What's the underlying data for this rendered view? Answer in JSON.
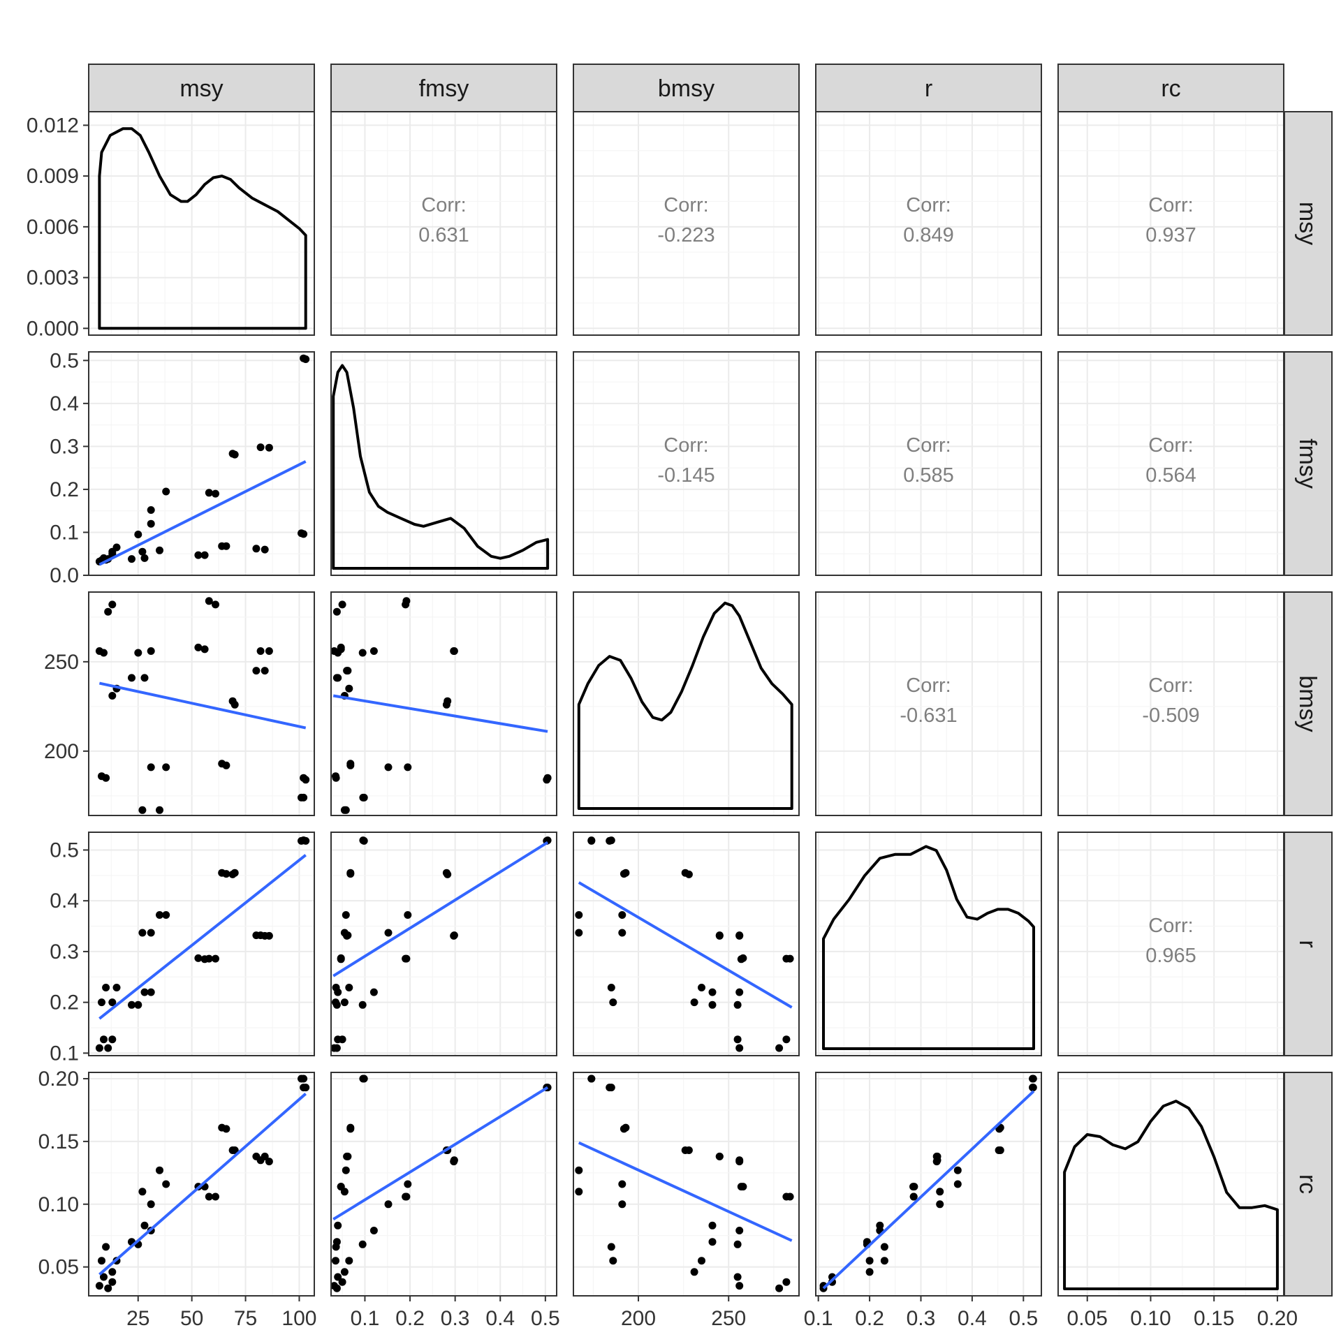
{
  "chart_data": {
    "type": "scatter",
    "layout": "pairs-matrix",
    "variables": [
      "msy",
      "fmsy",
      "bmsy",
      "r",
      "rc"
    ],
    "colors": {
      "points": "#000000",
      "fit_line": "#3366FF",
      "density": "#000000",
      "strip_bg": "#D9D9D9",
      "panel_border": "#333333",
      "grid_major": "#EBEBEB",
      "grid_minor": "#F5F5F5",
      "corr_text": "#7F7F7F"
    },
    "axis_ranges": {
      "msy": [
        2,
        107
      ],
      "fmsy": [
        0.025,
        0.525
      ],
      "bmsy": [
        164,
        289
      ],
      "r": [
        0.095,
        0.535
      ],
      "rc": [
        0.027,
        0.205
      ]
    },
    "ticks": {
      "msy": [
        "25",
        "50",
        "75",
        "100"
      ],
      "fmsy": [
        "0.1",
        "0.2",
        "0.3",
        "0.4",
        "0.5"
      ],
      "bmsy": [
        "200",
        "250"
      ],
      "r": [
        "0.1",
        "0.2",
        "0.3",
        "0.4",
        "0.5"
      ],
      "rc": [
        "0.05",
        "0.10",
        "0.15",
        "0.20"
      ]
    },
    "row_axis": {
      "fmsy": {
        "range": [
          0,
          0.52
        ],
        "ticks": [
          "0.0",
          "0.1",
          "0.2",
          "0.3",
          "0.4",
          "0.5"
        ]
      },
      "bmsy": {
        "range": [
          164,
          289
        ],
        "ticks": [
          "200",
          "250"
        ]
      },
      "r": {
        "range": [
          0.095,
          0.535
        ],
        "ticks": [
          "0.1",
          "0.2",
          "0.3",
          "0.4",
          "0.5"
        ]
      },
      "rc": {
        "range": [
          0.027,
          0.205
        ],
        "ticks": [
          "0.05",
          "0.10",
          "0.15",
          "0.20"
        ]
      }
    },
    "density_axis": {
      "range": [
        -0.0004,
        0.0128
      ],
      "ticks": [
        "0.000",
        "0.003",
        "0.006",
        "0.009",
        "0.012"
      ]
    },
    "correlations": [
      {
        "row": "msy",
        "col": "fmsy",
        "label": "Corr:",
        "value": "0.631"
      },
      {
        "row": "msy",
        "col": "bmsy",
        "label": "Corr:",
        "value": "-0.223"
      },
      {
        "row": "msy",
        "col": "r",
        "label": "Corr:",
        "value": "0.849"
      },
      {
        "row": "msy",
        "col": "rc",
        "label": "Corr:",
        "value": "0.937"
      },
      {
        "row": "fmsy",
        "col": "bmsy",
        "label": "Corr:",
        "value": "-0.145"
      },
      {
        "row": "fmsy",
        "col": "r",
        "label": "Corr:",
        "value": "0.585"
      },
      {
        "row": "fmsy",
        "col": "rc",
        "label": "Corr:",
        "value": "0.564"
      },
      {
        "row": "bmsy",
        "col": "r",
        "label": "Corr:",
        "value": "-0.631"
      },
      {
        "row": "bmsy",
        "col": "rc",
        "label": "Corr:",
        "value": "-0.509"
      },
      {
        "row": "r",
        "col": "rc",
        "label": "Corr:",
        "value": "0.965"
      }
    ],
    "observations": [
      {
        "msy": 7,
        "fmsy": 0.032,
        "bmsy": 256,
        "r": 0.11,
        "rc": 0.035
      },
      {
        "msy": 8,
        "fmsy": 0.035,
        "bmsy": 186,
        "r": 0.2,
        "rc": 0.055
      },
      {
        "msy": 9,
        "fmsy": 0.04,
        "bmsy": 255,
        "r": 0.127,
        "rc": 0.042
      },
      {
        "msy": 10,
        "fmsy": 0.036,
        "bmsy": 185,
        "r": 0.229,
        "rc": 0.066
      },
      {
        "msy": 11,
        "fmsy": 0.038,
        "bmsy": 278,
        "r": 0.11,
        "rc": 0.033
      },
      {
        "msy": 13,
        "fmsy": 0.055,
        "bmsy": 231,
        "r": 0.2,
        "rc": 0.046
      },
      {
        "msy": 13,
        "fmsy": 0.05,
        "bmsy": 282,
        "r": 0.127,
        "rc": 0.038
      },
      {
        "msy": 15,
        "fmsy": 0.065,
        "bmsy": 235,
        "r": 0.229,
        "rc": 0.055
      },
      {
        "msy": 22,
        "fmsy": 0.038,
        "bmsy": 241,
        "r": 0.195,
        "rc": 0.07
      },
      {
        "msy": 25,
        "fmsy": 0.095,
        "bmsy": 255,
        "r": 0.195,
        "rc": 0.068
      },
      {
        "msy": 27,
        "fmsy": 0.055,
        "bmsy": 167,
        "r": 0.337,
        "rc": 0.11
      },
      {
        "msy": 28,
        "fmsy": 0.04,
        "bmsy": 241,
        "r": 0.22,
        "rc": 0.083
      },
      {
        "msy": 31,
        "fmsy": 0.152,
        "bmsy": 191,
        "r": 0.337,
        "rc": 0.1
      },
      {
        "msy": 31,
        "fmsy": 0.12,
        "bmsy": 256,
        "r": 0.22,
        "rc": 0.079
      },
      {
        "msy": 35,
        "fmsy": 0.058,
        "bmsy": 167,
        "r": 0.372,
        "rc": 0.127
      },
      {
        "msy": 38,
        "fmsy": 0.195,
        "bmsy": 191,
        "r": 0.372,
        "rc": 0.116
      },
      {
        "msy": 53,
        "fmsy": 0.047,
        "bmsy": 258,
        "r": 0.287,
        "rc": 0.114
      },
      {
        "msy": 56,
        "fmsy": 0.047,
        "bmsy": 257,
        "r": 0.285,
        "rc": 0.114
      },
      {
        "msy": 58,
        "fmsy": 0.192,
        "bmsy": 284,
        "r": 0.286,
        "rc": 0.106
      },
      {
        "msy": 61,
        "fmsy": 0.19,
        "bmsy": 282,
        "r": 0.286,
        "rc": 0.106
      },
      {
        "msy": 64,
        "fmsy": 0.068,
        "bmsy": 193,
        "r": 0.455,
        "rc": 0.161
      },
      {
        "msy": 66,
        "fmsy": 0.068,
        "bmsy": 192,
        "r": 0.453,
        "rc": 0.16
      },
      {
        "msy": 69,
        "fmsy": 0.283,
        "bmsy": 228,
        "r": 0.452,
        "rc": 0.143
      },
      {
        "msy": 70,
        "fmsy": 0.281,
        "bmsy": 226,
        "r": 0.455,
        "rc": 0.143
      },
      {
        "msy": 80,
        "fmsy": 0.062,
        "bmsy": 245,
        "r": 0.332,
        "rc": 0.138
      },
      {
        "msy": 82,
        "fmsy": 0.298,
        "bmsy": 256,
        "r": 0.332,
        "rc": 0.135
      },
      {
        "msy": 84,
        "fmsy": 0.06,
        "bmsy": 245,
        "r": 0.331,
        "rc": 0.138
      },
      {
        "msy": 86,
        "fmsy": 0.297,
        "bmsy": 256,
        "r": 0.331,
        "rc": 0.134
      },
      {
        "msy": 101,
        "fmsy": 0.098,
        "bmsy": 174,
        "r": 0.518,
        "rc": 0.2
      },
      {
        "msy": 102,
        "fmsy": 0.505,
        "bmsy": 185,
        "r": 0.519,
        "rc": 0.193
      },
      {
        "msy": 103,
        "fmsy": 0.503,
        "bmsy": 184,
        "r": 0.518,
        "rc": 0.193
      },
      {
        "msy": 102,
        "fmsy": 0.096,
        "bmsy": 174,
        "r": 0.519,
        "rc": 0.2
      }
    ],
    "densities": {
      "msy": {
        "x": [
          7,
          8,
          12,
          18,
          22,
          26,
          30,
          35,
          40,
          45,
          48,
          52,
          56,
          60,
          64,
          68,
          72,
          78,
          84,
          90,
          95,
          100,
          103
        ],
        "y": [
          0.009,
          0.0104,
          0.0114,
          0.0118,
          0.0118,
          0.0114,
          0.0104,
          0.009,
          0.0079,
          0.0075,
          0.0075,
          0.0079,
          0.0085,
          0.0089,
          0.009,
          0.0088,
          0.0083,
          0.0077,
          0.0073,
          0.0069,
          0.0064,
          0.0059,
          0.0055
        ]
      },
      "fmsy": {
        "x": [
          0.03,
          0.04,
          0.05,
          0.06,
          0.075,
          0.09,
          0.11,
          0.13,
          0.15,
          0.18,
          0.21,
          0.23,
          0.26,
          0.29,
          0.32,
          0.35,
          0.38,
          0.4,
          0.42,
          0.45,
          0.48,
          0.505
        ],
        "y": [
          0.43,
          0.49,
          0.507,
          0.49,
          0.4,
          0.28,
          0.19,
          0.155,
          0.14,
          0.125,
          0.11,
          0.105,
          0.115,
          0.125,
          0.1,
          0.055,
          0.03,
          0.025,
          0.03,
          0.045,
          0.065,
          0.072
        ]
      },
      "bmsy": {
        "x": [
          167,
          172,
          178,
          184,
          190,
          196,
          202,
          208,
          213,
          218,
          224,
          230,
          236,
          242,
          248,
          252,
          256,
          262,
          268,
          274,
          280,
          285
        ],
        "y": [
          0.4,
          0.48,
          0.55,
          0.585,
          0.57,
          0.5,
          0.41,
          0.35,
          0.34,
          0.37,
          0.45,
          0.55,
          0.66,
          0.75,
          0.79,
          0.78,
          0.74,
          0.64,
          0.54,
          0.48,
          0.44,
          0.4
        ]
      },
      "r": {
        "x": [
          0.11,
          0.13,
          0.16,
          0.19,
          0.22,
          0.25,
          0.28,
          0.31,
          0.33,
          0.35,
          0.37,
          0.39,
          0.41,
          0.43,
          0.45,
          0.47,
          0.49,
          0.51,
          0.52
        ],
        "y": [
          0.28,
          0.33,
          0.38,
          0.44,
          0.485,
          0.495,
          0.495,
          0.515,
          0.505,
          0.455,
          0.38,
          0.335,
          0.33,
          0.345,
          0.355,
          0.355,
          0.345,
          0.325,
          0.31
        ]
      },
      "rc": {
        "x": [
          0.032,
          0.04,
          0.05,
          0.06,
          0.07,
          0.08,
          0.09,
          0.1,
          0.11,
          0.12,
          0.13,
          0.14,
          0.15,
          0.16,
          0.17,
          0.18,
          0.19,
          0.2
        ],
        "y": [
          0.115,
          0.14,
          0.152,
          0.15,
          0.142,
          0.138,
          0.145,
          0.165,
          0.18,
          0.185,
          0.178,
          0.16,
          0.13,
          0.095,
          0.08,
          0.08,
          0.082,
          0.078
        ]
      }
    },
    "fits": {
      "fmsy~msy": {
        "x": [
          7,
          103
        ],
        "y": [
          0.025,
          0.265
        ]
      },
      "bmsy~msy": {
        "x": [
          7,
          103
        ],
        "y": [
          238,
          213
        ]
      },
      "bmsy~fmsy": {
        "x": [
          0.03,
          0.505
        ],
        "y": [
          231,
          211
        ]
      },
      "r~msy": {
        "x": [
          7,
          103
        ],
        "y": [
          0.168,
          0.49
        ]
      },
      "r~fmsy": {
        "x": [
          0.03,
          0.505
        ],
        "y": [
          0.252,
          0.515
        ]
      },
      "r~bmsy": {
        "x": [
          167,
          285
        ],
        "y": [
          0.436,
          0.19
        ]
      },
      "rc~msy": {
        "x": [
          7,
          103
        ],
        "y": [
          0.044,
          0.188
        ]
      },
      "rc~fmsy": {
        "x": [
          0.03,
          0.505
        ],
        "y": [
          0.088,
          0.193
        ]
      },
      "rc~bmsy": {
        "x": [
          167,
          285
        ],
        "y": [
          0.149,
          0.071
        ]
      },
      "rc~r": {
        "x": [
          0.11,
          0.52
        ],
        "y": [
          0.033,
          0.19
        ]
      }
    },
    "grid": true
  }
}
